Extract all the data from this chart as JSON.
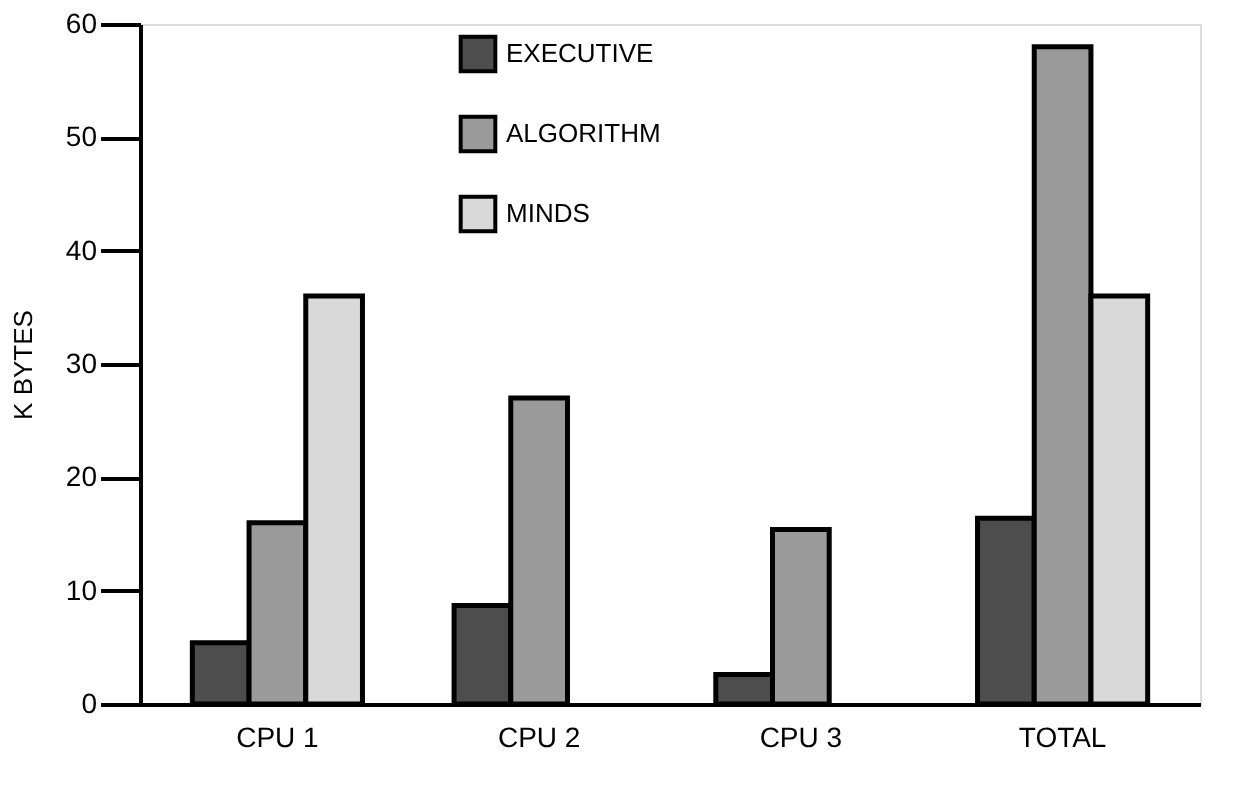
{
  "chart_data": {
    "type": "bar",
    "ylabel": "K BYTES",
    "categories": [
      "CPU 1",
      "CPU 2",
      "CPU 3",
      "TOTAL"
    ],
    "series": [
      {
        "name": "EXECUTIVE",
        "color": "#4d4d4d",
        "values": [
          5.4,
          8.7,
          2.6,
          16.4
        ]
      },
      {
        "name": "ALGORITHM",
        "color": "#9a9a9a",
        "values": [
          16,
          27,
          15.4,
          58
        ]
      },
      {
        "name": "MINDS",
        "color": "#d9d9d9",
        "values": [
          36,
          null,
          null,
          36
        ]
      }
    ],
    "ylim": [
      0,
      60
    ],
    "yticks": [
      0,
      10,
      20,
      30,
      40,
      50,
      60
    ],
    "grid": false,
    "legend": "top"
  }
}
